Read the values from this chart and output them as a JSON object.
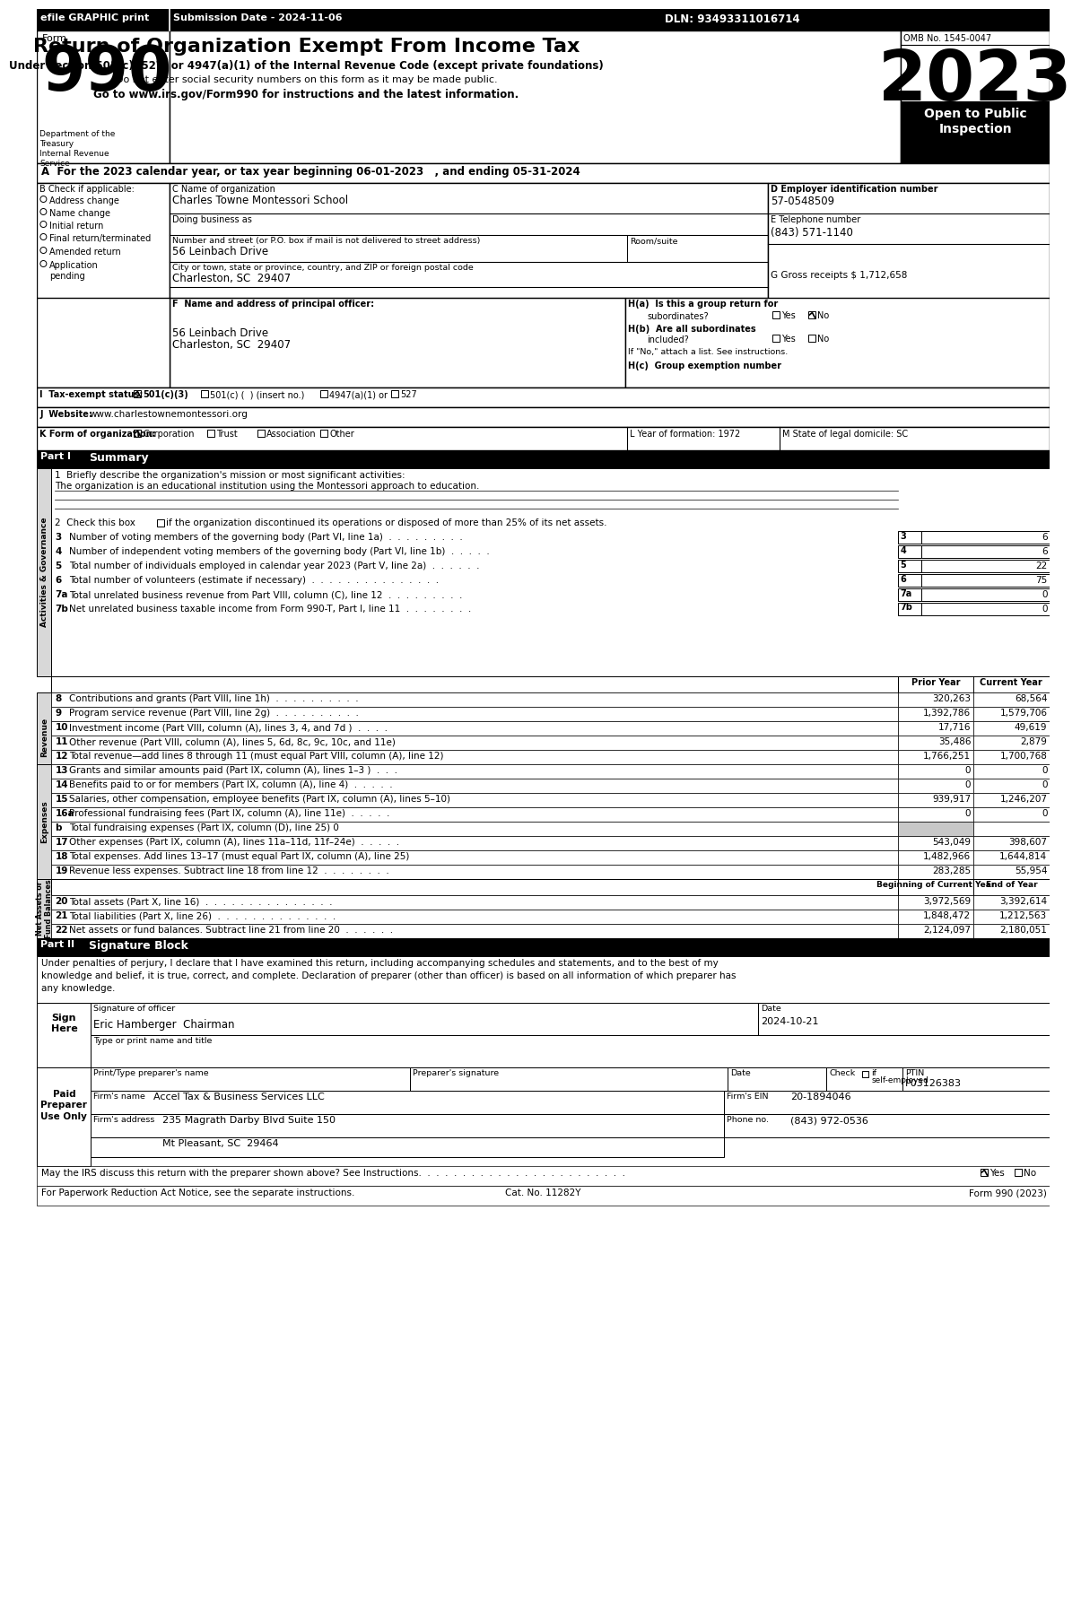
{
  "efile_text": "efile GRAPHIC print",
  "submission_date": "Submission Date - 2024-11-06",
  "dln": "DLN: 93493311016714",
  "form_number": "990",
  "form_label": "Form",
  "title_line1": "Return of Organization Exempt From Income Tax",
  "title_line2": "Under section 501(c), 527, or 4947(a)(1) of the Internal Revenue Code (except private foundations)",
  "title_line3": "Do not enter social security numbers on this form as it may be made public.",
  "title_line4": "Go to www.irs.gov/Form990 for instructions and the latest information.",
  "omb": "OMB No. 1545-0047",
  "year": "2023",
  "open_to_public": "Open to Public\nInspection",
  "dept_treasury": "Department of the\nTreasury\nInternal Revenue\nService",
  "tax_year_line": "A  For the 2023 calendar year, or tax year beginning 06-01-2023   , and ending 05-31-2024",
  "b_label": "B Check if applicable:",
  "b_items": [
    "Address change",
    "Name change",
    "Initial return",
    "Final return/terminated",
    "Amended return",
    "Application\npending"
  ],
  "c_label": "C Name of organization",
  "org_name": "Charles Towne Montessori School",
  "dba_label": "Doing business as",
  "street_label": "Number and street (or P.O. box if mail is not delivered to street address)",
  "street_value": "56 Leinbach Drive",
  "room_label": "Room/suite",
  "city_label": "City or town, state or province, country, and ZIP or foreign postal code",
  "city_value": "Charleston, SC  29407",
  "d_label": "D Employer identification number",
  "ein": "57-0548509",
  "e_label": "E Telephone number",
  "phone": "(843) 571-1140",
  "g_label": "G Gross receipts $ 1,712,658",
  "f_label": "F  Name and address of principal officer:",
  "principal_address1": "56 Leinbach Drive",
  "principal_address2": "Charleston, SC  29407",
  "ha_label": "H(a)  Is this a group return for",
  "ha_text": "subordinates?",
  "hb_label": "H(b)  Are all subordinates",
  "hb_text": "included?",
  "hb_note": "If \"No,\" attach a list. See instructions.",
  "hc_label": "H(c)  Group exemption number",
  "i_label": "I  Tax-exempt status:",
  "i_501c3": "501(c)(3)",
  "i_501c": "501(c) (  ) (insert no.)",
  "i_4947": "4947(a)(1) or",
  "i_527": "527",
  "j_label": "J  Website:",
  "website": "www.charlestownemontessori.org",
  "k_label": "K Form of organization:",
  "k_items": [
    "Corporation",
    "Trust",
    "Association",
    "Other"
  ],
  "l_label": "L Year of formation: 1972",
  "m_label": "M State of legal domicile: SC",
  "part1_label": "Part I",
  "part1_title": "Summary",
  "line1_label": "1  Briefly describe the organization's mission or most significant activities:",
  "line1_value": "The organization is an educational institution using the Montessori approach to education.",
  "line2_text": "if the organization discontinued its operations or disposed of more than 25% of its net assets.",
  "line3_text": "Number of voting members of the governing body (Part VI, line 1a)  .  .  .  .  .  .  .  .  .",
  "line3_val": "6",
  "line4_text": "Number of independent voting members of the governing body (Part VI, line 1b)  .  .  .  .  .",
  "line4_val": "6",
  "line5_text": "Total number of individuals employed in calendar year 2023 (Part V, line 2a)  .  .  .  .  .  .",
  "line5_val": "22",
  "line6_text": "Total number of volunteers (estimate if necessary)  .  .  .  .  .  .  .  .  .  .  .  .  .  .  .",
  "line6_val": "75",
  "line7a_text": "Total unrelated business revenue from Part VIII, column (C), line 12  .  .  .  .  .  .  .  .  .",
  "line7a_val": "0",
  "line7b_text": "Net unrelated business taxable income from Form 990-T, Part I, line 11  .  .  .  .  .  .  .  .",
  "line7b_val": "0",
  "col_prior": "Prior Year",
  "col_current": "Current Year",
  "line8_text": "Contributions and grants (Part VIII, line 1h)  .  .  .  .  .  .  .  .  .  .",
  "line8_prior": "320,263",
  "line8_current": "68,564",
  "line9_text": "Program service revenue (Part VIII, line 2g)  .  .  .  .  .  .  .  .  .  .",
  "line9_prior": "1,392,786",
  "line9_current": "1,579,706",
  "line10_text": "Investment income (Part VIII, column (A), lines 3, 4, and 7d )  .  .  .  .",
  "line10_prior": "17,716",
  "line10_current": "49,619",
  "line11_text": "Other revenue (Part VIII, column (A), lines 5, 6d, 8c, 9c, 10c, and 11e)",
  "line11_prior": "35,486",
  "line11_current": "2,879",
  "line12_text": "Total revenue—add lines 8 through 11 (must equal Part VIII, column (A), line 12)",
  "line12_prior": "1,766,251",
  "line12_current": "1,700,768",
  "line13_text": "Grants and similar amounts paid (Part IX, column (A), lines 1–3 )  .  .  .",
  "line13_prior": "0",
  "line13_current": "0",
  "line14_text": "Benefits paid to or for members (Part IX, column (A), line 4)  .  .  .  .  .",
  "line14_prior": "0",
  "line14_current": "0",
  "line15_text": "Salaries, other compensation, employee benefits (Part IX, column (A), lines 5–10)",
  "line15_prior": "939,917",
  "line15_current": "1,246,207",
  "line16a_text": "Professional fundraising fees (Part IX, column (A), line 11e)  .  .  .  .  .",
  "line16a_prior": "0",
  "line16a_current": "0",
  "line16b_text": "Total fundraising expenses (Part IX, column (D), line 25) 0",
  "line17_text": "Other expenses (Part IX, column (A), lines 11a–11d, 11f–24e)  .  .  .  .  .",
  "line17_prior": "543,049",
  "line17_current": "398,607",
  "line18_text": "Total expenses. Add lines 13–17 (must equal Part IX, column (A), line 25)",
  "line18_prior": "1,482,966",
  "line18_current": "1,644,814",
  "line19_text": "Revenue less expenses. Subtract line 18 from line 12  .  .  .  .  .  .  .  .",
  "line19_prior": "283,285",
  "line19_current": "55,954",
  "col_beg": "Beginning of Current Year",
  "col_end": "End of Year",
  "line20_text": "Total assets (Part X, line 16)  .  .  .  .  .  .  .  .  .  .  .  .  .  .  .",
  "line20_beg": "3,972,569",
  "line20_end": "3,392,614",
  "line21_text": "Total liabilities (Part X, line 26)  .  .  .  .  .  .  .  .  .  .  .  .  .  .",
  "line21_beg": "1,848,472",
  "line21_end": "1,212,563",
  "line22_text": "Net assets or fund balances. Subtract line 21 from line 20  .  .  .  .  .  .",
  "line22_beg": "2,124,097",
  "line22_end": "2,180,051",
  "part2_label": "Part II",
  "part2_title": "Signature Block",
  "sig_text1": "Under penalties of perjury, I declare that I have examined this return, including accompanying schedules and statements, and to the best of my",
  "sig_text2": "knowledge and belief, it is true, correct, and complete. Declaration of preparer (other than officer) is based on all information of which preparer has",
  "sig_text3": "any knowledge.",
  "sign_date": "2024-10-21",
  "sign_name": "Eric Hamberger  Chairman",
  "sign_name_label": "Signature of officer",
  "sign_date_label": "Date",
  "sign_title_label": "Type or print name and title",
  "paid_preparer": "Paid\nPreparer\nUse Only",
  "preparer_name_label": "Print/Type preparer's name",
  "preparer_sig_label": "Preparer's signature",
  "preparer_date_label": "Date",
  "preparer_check_label": "Check",
  "preparer_self_employed": "if\nself-employed",
  "preparer_ptin_label": "PTIN",
  "preparer_ptin": "P03126383",
  "preparer_firm_label": "Firm's name",
  "preparer_firm": "Accel Tax & Business Services LLC",
  "preparer_firm_ein_label": "Firm's EIN",
  "preparer_firm_ein": "20-1894046",
  "preparer_address_label": "Firm's address",
  "preparer_address": "235 Magrath Darby Blvd Suite 150",
  "preparer_city": "Mt Pleasant, SC  29464",
  "preparer_phone_label": "Phone no.",
  "preparer_phone": "(843) 972-0536",
  "discuss_label": "May the IRS discuss this return with the preparer shown above? See Instructions.  .  .  .  .  .  .  .  .  .  .  .  .  .  .  .  .  .  .  .  .  .  .  .",
  "paperwork_label": "For Paperwork Reduction Act Notice, see the separate instructions.",
  "cat_no": "Cat. No. 11282Y",
  "form_990_2023": "Form 990 (2023)",
  "sidebar_activities": "Activities & Governance",
  "sidebar_revenue": "Revenue",
  "sidebar_expenses": "Expenses",
  "sidebar_net_assets": "Net Assets or\nFund Balances"
}
